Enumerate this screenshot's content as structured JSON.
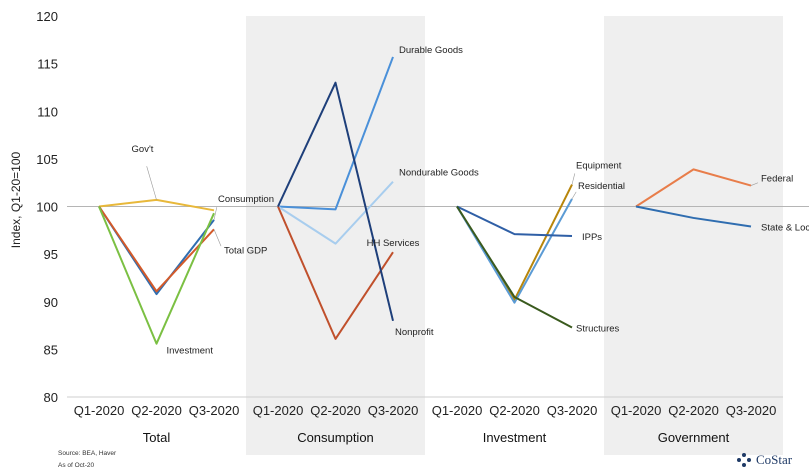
{
  "chart_data": {
    "type": "line",
    "ylabel": "Index, Q1-20=100",
    "ylim": [
      80,
      120
    ],
    "ytick_step": 5,
    "grid": false,
    "reference_line": 100,
    "quarters": [
      "Q1-2020",
      "Q2-2020",
      "Q3-2020"
    ],
    "groups": [
      {
        "name": "Total",
        "shaded": false,
        "series": [
          {
            "name": "Gov't",
            "color": "#e8b83a",
            "values": [
              100,
              100.7,
              99.6
            ]
          },
          {
            "name": "Consumption",
            "color": "#2f6db0",
            "values": [
              100,
              90.8,
              98.6
            ]
          },
          {
            "name": "Total GDP",
            "color": "#d35a2a",
            "values": [
              100,
              91.1,
              97.6
            ]
          },
          {
            "name": "Investment",
            "color": "#7bc043",
            "values": [
              100,
              85.6,
              99.3
            ]
          }
        ]
      },
      {
        "name": "Consumption",
        "shaded": true,
        "series": [
          {
            "name": "Durable Goods",
            "color": "#4a90d9",
            "values": [
              100,
              99.7,
              115.7
            ]
          },
          {
            "name": "Nondurable Goods",
            "color": "#a8cdee",
            "values": [
              100,
              96.1,
              102.6
            ]
          },
          {
            "name": "HH Services",
            "color": "#c0502c",
            "values": [
              100,
              86.1,
              95.2
            ]
          },
          {
            "name": "Nonprofit",
            "color": "#1e3f7a",
            "values": [
              100,
              113,
              88
            ]
          }
        ]
      },
      {
        "name": "Investment",
        "shaded": false,
        "series": [
          {
            "name": "Equipment",
            "color": "#b8860b",
            "values": [
              100,
              90.2,
              102.3
            ]
          },
          {
            "name": "Residential",
            "color": "#5b9bd5",
            "values": [
              100,
              89.9,
              100.8
            ]
          },
          {
            "name": "IPPs",
            "color": "#2f5fa6",
            "values": [
              100,
              97.1,
              96.9
            ]
          },
          {
            "name": "Structures",
            "color": "#3a5a1e",
            "values": [
              100,
              90.5,
              87.3
            ]
          }
        ]
      },
      {
        "name": "Government",
        "shaded": true,
        "series": [
          {
            "name": "Federal",
            "color": "#e87d4a",
            "values": [
              100,
              103.9,
              102.2
            ]
          },
          {
            "name": "State & Local",
            "color": "#2f6db0",
            "values": [
              100,
              98.8,
              97.9
            ]
          }
        ]
      }
    ]
  },
  "footer": {
    "source": "Source: BEA, Haver",
    "date": "As of Oct-20"
  },
  "logo": {
    "text": "CoStar",
    "color": "#1f3a66"
  }
}
